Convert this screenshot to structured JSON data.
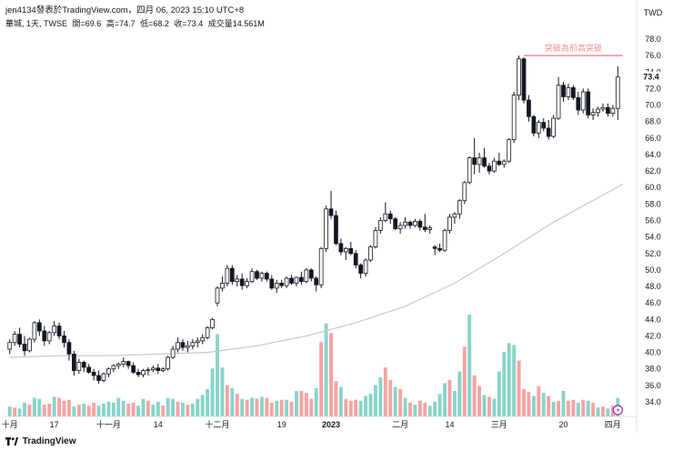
{
  "header": {
    "author_line": "jen4134發表於TradingView.com，四月 06, 2023 15:10 UTC+8",
    "symbol": "華城, 1天, TWSE",
    "open": "開=69.6",
    "high": "高=74.7",
    "low": "低=68.2",
    "close": "收=73.4",
    "volume": "成交量14.561M"
  },
  "footer": {
    "brand": "TradingView"
  },
  "colors": {
    "up_body": "#ffffff",
    "down_body": "#131722",
    "candle_line": "#131722",
    "vol_up": "#88d4c9",
    "vol_down": "#f5a3a3",
    "vol_big_up": "#f5a3a3",
    "ma_line": "#c8c8c8",
    "annotation": "#f09090",
    "price_label_bg": "#ffffff",
    "alert_icon": "#9c27b0"
  },
  "chart_data": {
    "type": "candlestick",
    "currency": "TWD",
    "y_ticks": [
      "78.0",
      "76.0",
      "74.0",
      "72.0",
      "70.0",
      "68.0",
      "66.0",
      "64.0",
      "62.0",
      "60.0",
      "58.0",
      "56.0",
      "54.0",
      "52.0",
      "50.0",
      "48.0",
      "46.0",
      "44.0",
      "42.0",
      "40.0",
      "38.0",
      "36.0",
      "34.0"
    ],
    "ylim": [
      32,
      79
    ],
    "x_labels": [
      {
        "label": "十月",
        "i": 0
      },
      {
        "label": "17",
        "i": 9
      },
      {
        "label": "十一月",
        "i": 20
      },
      {
        "label": "14",
        "i": 30
      },
      {
        "label": "十二月",
        "i": 42
      },
      {
        "label": "19",
        "i": 55
      },
      {
        "label": "2023",
        "i": 65
      },
      {
        "label": "二月",
        "i": 79
      },
      {
        "label": "14",
        "i": 89
      },
      {
        "label": "三月",
        "i": 99
      },
      {
        "label": "20",
        "i": 112
      },
      {
        "label": "四月",
        "i": 122
      }
    ],
    "current_price": "73.4",
    "annotation": {
      "text": "突破為前高突破",
      "level": 76.0,
      "from_i": 104,
      "to_i": 124
    },
    "ohlc": [
      [
        40.4,
        41.6,
        39.8,
        41.2
      ],
      [
        41.2,
        42.6,
        40.8,
        42.2
      ],
      [
        42.2,
        43.0,
        40.6,
        41.0
      ],
      [
        41.0,
        42.0,
        39.6,
        40.2
      ],
      [
        40.2,
        41.8,
        40.0,
        41.6
      ],
      [
        41.6,
        43.8,
        41.2,
        43.6
      ],
      [
        43.6,
        44.0,
        42.0,
        42.6
      ],
      [
        42.6,
        43.2,
        40.8,
        41.4
      ],
      [
        41.4,
        42.6,
        41.0,
        42.4
      ],
      [
        42.4,
        43.8,
        42.0,
        43.2
      ],
      [
        43.2,
        43.6,
        41.6,
        42.0
      ],
      [
        42.0,
        42.6,
        40.6,
        41.2
      ],
      [
        41.2,
        41.6,
        39.0,
        39.8
      ],
      [
        39.8,
        40.2,
        37.2,
        37.8
      ],
      [
        37.8,
        39.2,
        37.4,
        38.8
      ],
      [
        38.8,
        39.0,
        37.6,
        38.2
      ],
      [
        38.2,
        38.6,
        37.4,
        37.6
      ],
      [
        37.6,
        38.0,
        36.6,
        37.2
      ],
      [
        37.2,
        37.8,
        36.2,
        36.6
      ],
      [
        36.6,
        37.6,
        36.4,
        37.4
      ],
      [
        37.4,
        38.2,
        37.0,
        38.0
      ],
      [
        38.0,
        38.6,
        37.6,
        38.4
      ],
      [
        38.4,
        38.8,
        38.0,
        38.6
      ],
      [
        38.6,
        39.4,
        38.2,
        38.9
      ],
      [
        38.9,
        39.0,
        38.0,
        38.4
      ],
      [
        38.4,
        38.8,
        37.4,
        37.6
      ],
      [
        37.6,
        38.0,
        37.0,
        37.3
      ],
      [
        37.3,
        38.0,
        37.0,
        37.8
      ],
      [
        37.8,
        38.2,
        37.2,
        37.9
      ],
      [
        37.9,
        38.4,
        37.6,
        38.1
      ],
      [
        38.1,
        38.6,
        37.4,
        37.8
      ],
      [
        37.8,
        38.2,
        37.6,
        38.0
      ],
      [
        38.0,
        39.6,
        37.8,
        39.4
      ],
      [
        39.4,
        40.8,
        39.2,
        40.4
      ],
      [
        40.4,
        41.8,
        40.0,
        41.2
      ],
      [
        41.2,
        41.6,
        40.2,
        40.6
      ],
      [
        40.6,
        41.4,
        40.0,
        40.8
      ],
      [
        40.8,
        41.6,
        40.4,
        41.2
      ],
      [
        41.2,
        41.8,
        40.6,
        41.4
      ],
      [
        41.4,
        42.2,
        41.0,
        41.8
      ],
      [
        41.8,
        43.2,
        41.6,
        43.0
      ],
      [
        43.0,
        44.2,
        42.8,
        44.0
      ],
      [
        46.0,
        48.0,
        45.6,
        47.8
      ],
      [
        47.8,
        49.2,
        47.4,
        48.4
      ],
      [
        48.4,
        50.6,
        48.0,
        50.2
      ],
      [
        50.2,
        50.6,
        48.2,
        48.6
      ],
      [
        48.6,
        49.4,
        48.0,
        48.9
      ],
      [
        48.9,
        49.6,
        47.6,
        48.1
      ],
      [
        48.1,
        49.0,
        47.8,
        48.6
      ],
      [
        48.6,
        50.2,
        48.4,
        49.8
      ],
      [
        49.8,
        50.0,
        48.8,
        49.0
      ],
      [
        49.0,
        49.8,
        48.6,
        49.6
      ],
      [
        49.6,
        49.8,
        48.6,
        48.9
      ],
      [
        48.9,
        49.4,
        47.6,
        47.8
      ],
      [
        47.8,
        48.8,
        47.2,
        48.4
      ],
      [
        48.4,
        48.8,
        47.8,
        48.1
      ],
      [
        48.1,
        49.2,
        47.8,
        49.0
      ],
      [
        49.0,
        49.4,
        48.2,
        48.4
      ],
      [
        48.4,
        49.2,
        48.0,
        49.1
      ],
      [
        49.1,
        49.8,
        48.2,
        48.6
      ],
      [
        48.6,
        50.2,
        48.4,
        50.0
      ],
      [
        50.0,
        50.2,
        48.6,
        49.0
      ],
      [
        49.0,
        49.2,
        47.4,
        48.2
      ],
      [
        48.2,
        52.8,
        47.8,
        52.6
      ],
      [
        52.6,
        57.8,
        52.2,
        57.4
      ],
      [
        57.4,
        59.6,
        56.2,
        56.6
      ],
      [
        56.6,
        57.2,
        53.0,
        53.2
      ],
      [
        53.2,
        53.8,
        51.8,
        52.2
      ],
      [
        52.2,
        52.8,
        51.2,
        52.6
      ],
      [
        52.6,
        53.4,
        51.8,
        52.0
      ],
      [
        52.0,
        52.4,
        50.2,
        50.6
      ],
      [
        50.6,
        50.8,
        49.0,
        49.6
      ],
      [
        49.6,
        51.4,
        49.2,
        51.2
      ],
      [
        51.2,
        53.0,
        51.0,
        52.8
      ],
      [
        52.8,
        55.2,
        52.6,
        54.8
      ],
      [
        54.8,
        56.4,
        54.4,
        56.0
      ],
      [
        56.0,
        58.2,
        55.8,
        56.8
      ],
      [
        56.8,
        57.2,
        55.6,
        56.2
      ],
      [
        56.2,
        56.4,
        54.8,
        55.0
      ],
      [
        55.0,
        55.8,
        54.4,
        55.4
      ],
      [
        55.4,
        56.4,
        55.0,
        55.8
      ],
      [
        55.8,
        56.0,
        55.0,
        55.4
      ],
      [
        55.4,
        56.2,
        55.2,
        55.9
      ],
      [
        55.9,
        56.2,
        54.8,
        55.2
      ],
      [
        55.2,
        56.8,
        54.6,
        54.9
      ],
      [
        54.9,
        55.4,
        54.4,
        55.1
      ],
      [
        52.8,
        53.0,
        51.8,
        52.6
      ],
      [
        52.6,
        53.2,
        52.2,
        52.4
      ],
      [
        52.4,
        55.0,
        52.2,
        54.8
      ],
      [
        54.8,
        56.8,
        54.4,
        56.4
      ],
      [
        56.4,
        57.0,
        55.6,
        56.8
      ],
      [
        56.8,
        58.6,
        56.2,
        58.4
      ],
      [
        58.4,
        60.8,
        58.0,
        60.6
      ],
      [
        60.6,
        63.8,
        60.4,
        63.6
      ],
      [
        63.6,
        66.0,
        61.6,
        62.8
      ],
      [
        62.8,
        64.2,
        61.8,
        63.6
      ],
      [
        63.6,
        64.8,
        62.4,
        62.6
      ],
      [
        62.6,
        63.0,
        61.6,
        62.0
      ],
      [
        62.0,
        63.6,
        61.8,
        63.2
      ],
      [
        63.2,
        64.2,
        62.6,
        62.8
      ],
      [
        62.8,
        63.4,
        62.4,
        63.2
      ],
      [
        63.2,
        66.0,
        63.0,
        65.8
      ],
      [
        65.8,
        71.6,
        65.4,
        71.2
      ],
      [
        71.2,
        76.0,
        70.6,
        75.6
      ],
      [
        75.6,
        75.8,
        70.2,
        70.6
      ],
      [
        70.6,
        71.2,
        68.0,
        68.6
      ],
      [
        68.6,
        68.8,
        66.2,
        66.6
      ],
      [
        66.6,
        68.2,
        66.0,
        67.9
      ],
      [
        67.9,
        68.4,
        66.8,
        67.2
      ],
      [
        67.2,
        68.2,
        65.8,
        66.2
      ],
      [
        66.2,
        68.8,
        66.0,
        68.4
      ],
      [
        68.4,
        73.4,
        68.2,
        72.4
      ],
      [
        72.4,
        72.8,
        70.4,
        71.0
      ],
      [
        71.0,
        72.6,
        70.6,
        72.1
      ],
      [
        72.1,
        72.4,
        70.6,
        70.9
      ],
      [
        70.9,
        71.6,
        68.8,
        69.4
      ],
      [
        69.4,
        72.0,
        69.0,
        71.6
      ],
      [
        71.6,
        72.0,
        68.4,
        68.8
      ],
      [
        68.8,
        69.6,
        68.2,
        69.1
      ],
      [
        69.1,
        69.8,
        68.6,
        69.5
      ],
      [
        69.5,
        70.2,
        69.2,
        69.7
      ],
      [
        69.7,
        70.2,
        68.6,
        69.0
      ],
      [
        69.0,
        70.0,
        68.6,
        69.6
      ],
      [
        69.6,
        74.7,
        68.2,
        73.4
      ]
    ],
    "volume": [
      1.0,
      0.9,
      0.8,
      1.4,
      1.2,
      1.9,
      1.8,
      1.2,
      1.3,
      2.0,
      1.9,
      1.6,
      1.7,
      1.0,
      1.2,
      1.3,
      1.1,
      1.4,
      1.1,
      1.3,
      1.5,
      1.4,
      1.9,
      1.6,
      1.3,
      1.4,
      1.1,
      1.8,
      1.6,
      1.2,
      1.5,
      1.1,
      1.9,
      1.8,
      1.5,
      1.4,
      1.2,
      1.3,
      1.8,
      2.2,
      2.8,
      4.9,
      8.4,
      5.0,
      3.2,
      2.9,
      2.3,
      1.8,
      1.7,
      1.9,
      1.8,
      2.0,
      1.9,
      1.4,
      1.6,
      1.7,
      1.7,
      1.5,
      2.6,
      2.6,
      2.4,
      1.8,
      2.9,
      7.6,
      9.5,
      8.5,
      3.6,
      3.0,
      1.8,
      1.6,
      1.7,
      1.6,
      2.1,
      2.3,
      3.2,
      4.0,
      5.0,
      3.7,
      3.0,
      2.8,
      1.9,
      1.4,
      1.2,
      1.6,
      1.4,
      1.1,
      1.5,
      2.3,
      3.4,
      3.7,
      2.6,
      4.6,
      7.1,
      10.4,
      4.2,
      3.1,
      2.2,
      2.0,
      1.8,
      4.6,
      6.6,
      7.5,
      7.3,
      5.7,
      2.8,
      2.5,
      2.1,
      3.1,
      2.4,
      2.1,
      1.5,
      1.6,
      2.6,
      1.6,
      1.7,
      1.4,
      1.7,
      1.6,
      1.4,
      0.9,
      1.0,
      0.8,
      1.1,
      1.9
    ],
    "volume_color": [
      "u",
      "d",
      "u",
      "u",
      "d",
      "u",
      "u",
      "d",
      "d",
      "u",
      "d",
      "d",
      "d",
      "u",
      "d",
      "u",
      "d",
      "d",
      "u",
      "u",
      "u",
      "u",
      "u",
      "u",
      "d",
      "d",
      "u",
      "u",
      "d",
      "u",
      "u",
      "d",
      "u",
      "u",
      "d",
      "u",
      "d",
      "u",
      "u",
      "u",
      "u",
      "u",
      "u",
      "u",
      "d",
      "u",
      "d",
      "u",
      "d",
      "u",
      "d",
      "u",
      "d",
      "d",
      "u",
      "d",
      "u",
      "d",
      "u",
      "d",
      "d",
      "d",
      "u",
      "R",
      "u",
      "d",
      "d",
      "u",
      "d",
      "d",
      "d",
      "u",
      "u",
      "u",
      "u",
      "u",
      "d",
      "d",
      "u",
      "d",
      "u",
      "d",
      "u",
      "d",
      "d",
      "u",
      "u",
      "u",
      "u",
      "d",
      "u",
      "u",
      "R",
      "u",
      "d",
      "d",
      "u",
      "d",
      "u",
      "u",
      "u",
      "u",
      "u",
      "d",
      "d",
      "d",
      "u",
      "d",
      "u",
      "d",
      "u",
      "d",
      "u",
      "d",
      "d",
      "u",
      "d",
      "u",
      "d",
      "u",
      "d",
      "u",
      "d",
      "u"
    ],
    "ma": [
      [
        0,
        39.4
      ],
      [
        10,
        39.6
      ],
      [
        20,
        39.6
      ],
      [
        30,
        39.8
      ],
      [
        40,
        40.0
      ],
      [
        50,
        40.8
      ],
      [
        60,
        42.0
      ],
      [
        70,
        43.6
      ],
      [
        80,
        45.6
      ],
      [
        90,
        48.4
      ],
      [
        100,
        52.0
      ],
      [
        110,
        55.8
      ],
      [
        124,
        60.4
      ]
    ]
  }
}
